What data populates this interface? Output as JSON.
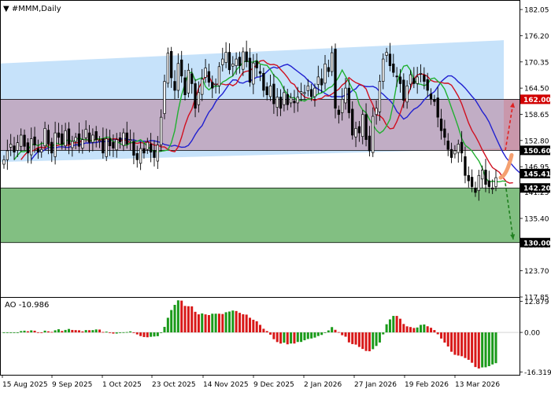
{
  "chart_data": [
    {
      "type": "candlestick",
      "title": "▼ #MMM,Daily",
      "symbol": "#MMM",
      "timeframe": "Daily",
      "ylim": [
        117.85,
        184.0
      ],
      "y_ticks": [
        182.05,
        176.2,
        170.35,
        164.5,
        158.65,
        152.8,
        146.95,
        141.25,
        135.4,
        129.55,
        123.7,
        117.85
      ],
      "x_tick_labels": [
        "15 Aug 2025",
        "9 Sep 2025",
        "1 Oct 2025",
        "23 Oct 2025",
        "14 Nov 2025",
        "9 Dec 2025",
        "2 Jan 2026",
        "27 Jan 2026",
        "19 Feb 2026",
        "13 Mar 2026"
      ],
      "closes": [
        148.5,
        150.5,
        152.0,
        150.2,
        152.3,
        154.0,
        151.5,
        150.0,
        153.2,
        151.8,
        150.2,
        150.8,
        155.5,
        152.0,
        150.0,
        154.5,
        153.5,
        152.0,
        155.0,
        152.0,
        152.6,
        153.5,
        151.5,
        153.0,
        155.3,
        152.4,
        154.0,
        153.0,
        152.8,
        150.0,
        153.2,
        151.6,
        151.1,
        153.0,
        152.5,
        154.5,
        152.0,
        153.0,
        149.5,
        148.5,
        151.0,
        150.0,
        152.4,
        150.2,
        149.0,
        151.8,
        158.0,
        166.0,
        172.3,
        166.8,
        164.0,
        170.0,
        167.2,
        163.0,
        168.5,
        165.5,
        160.0,
        163.5,
        166.5,
        169.0,
        165.8,
        164.5,
        165.4,
        169.3,
        171.0,
        172.5,
        168.6,
        169.9,
        171.0,
        169.5,
        172.6,
        170.4,
        165.8,
        170.1,
        169.0,
        167.8,
        164.0,
        163.0,
        165.0,
        161.0,
        162.5,
        160.0,
        163.5,
        160.8,
        162.4,
        161.2,
        162.5,
        163.7,
        163.5,
        165.0,
        162.6,
        164.5,
        167.0,
        165.2,
        169.9,
        168.2,
        172.4,
        160.0,
        158.6,
        162.0,
        164.5,
        159.0,
        154.0,
        155.5,
        154.5,
        158.6,
        153.0,
        150.5,
        158.2,
        160.0,
        166.0,
        171.0,
        172.5,
        169.5,
        168.0,
        167.0,
        165.5,
        161.8,
        165.0,
        167.5,
        165.5,
        167.0,
        167.8,
        166.0,
        164.0,
        162.0,
        161.5,
        158.0,
        155.0,
        153.5,
        150.8,
        149.0,
        150.5,
        152.0,
        150.0,
        145.0,
        143.8,
        142.5,
        141.2,
        145.0,
        146.2,
        143.0,
        142.5,
        142.1,
        144.5
      ],
      "indicators": [
        {
          "name": "Alligator Jaw",
          "color": "#2020d0"
        },
        {
          "name": "Alligator Teeth",
          "color": "#d01020"
        },
        {
          "name": "Alligator Lips",
          "color": "#20b030"
        }
      ],
      "price_labels": [
        {
          "value": 162.0,
          "text": "162.00",
          "bg": "#d10000"
        },
        {
          "value": 150.6,
          "text": "150.60",
          "bg": "#000000"
        },
        {
          "value": 145.41,
          "text": "145.41",
          "bg": "#000000"
        },
        {
          "value": 142.2,
          "text": "142.20",
          "bg": "#000000"
        },
        {
          "value": 130.0,
          "text": "130.00",
          "bg": "#000000"
        }
      ],
      "horizontal_levels": [
        162.0,
        150.6,
        142.2,
        130.0
      ],
      "zones": [
        {
          "name": "resistance-zone",
          "from": 150.6,
          "to": 162.0,
          "color": "#c998ac"
        },
        {
          "name": "support-zone",
          "from": 130.0,
          "to": 142.2,
          "color": "#82bf82"
        }
      ],
      "channel": {
        "color": "#b3d8f8",
        "upper_start": 170.0,
        "upper_end": 175.2,
        "lower_start": 148.0,
        "lower_end": 151.0
      },
      "scenario_arrows": [
        {
          "direction": "up",
          "target": 162.0,
          "color": "#e02020"
        },
        {
          "direction": "down",
          "target": 130.0,
          "color": "#208020"
        }
      ]
    },
    {
      "type": "bar",
      "title": "AO -10.986",
      "indicator": "AO",
      "last_value": -10.986,
      "ylim": [
        -17.5,
        14.3
      ],
      "y_ticks": [
        12.879,
        0.0,
        -16.319
      ],
      "y_tick_labels": [
        "12.879",
        "0.00",
        "-16.319"
      ],
      "up_color": "#1a9a1a",
      "down_color": "#d81818"
    }
  ]
}
